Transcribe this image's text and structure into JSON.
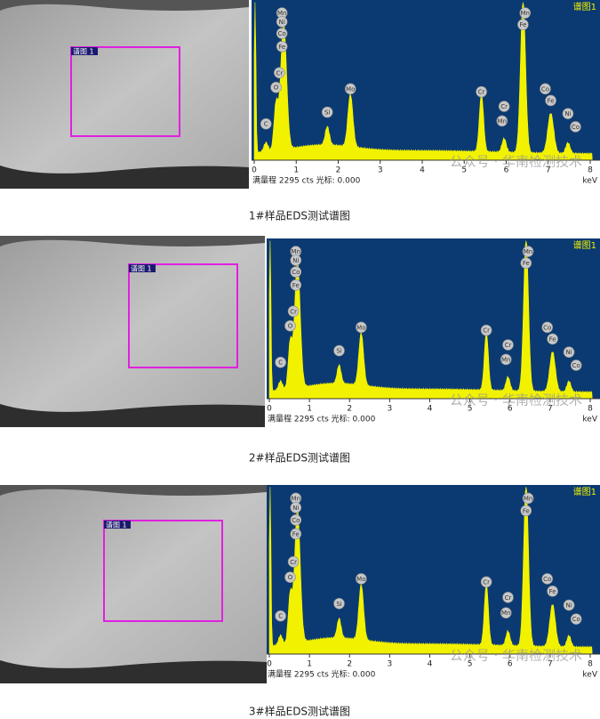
{
  "watermark": "公众号 · 华南检测技术",
  "figures": [
    {
      "region_label": "谱图 1",
      "spectrum": {
        "label": "谱图1",
        "peaks": [
          "Mn",
          "Ni",
          "Co",
          "Fe",
          "Cr",
          "O",
          "C",
          "Si",
          "Mo",
          "Cr",
          "Cr",
          "Mn",
          "Mn",
          "Fe",
          "Co",
          "Fe",
          "Ni",
          "Co"
        ],
        "ticks": [
          0,
          1,
          2,
          3,
          4,
          5,
          6,
          7,
          8
        ],
        "unit": "keV",
        "status": "满量程 2295 cts 光标: 0.000"
      },
      "caption": "1#样品EDS测试谱图"
    },
    {
      "region_label": "谱图 1",
      "spectrum": {
        "label": "谱图1",
        "peaks": [
          "Mn",
          "Ni",
          "Co",
          "Fe",
          "Cr",
          "O",
          "C",
          "Si",
          "Mo",
          "Cr",
          "Cr",
          "Mn",
          "Mn",
          "Fe",
          "Co",
          "Fe",
          "Ni",
          "Co"
        ],
        "ticks": [
          0,
          1,
          2,
          3,
          4,
          5,
          6,
          7,
          8
        ],
        "unit": "keV",
        "status": "满量程 2295 cts 光标: 0.000"
      },
      "caption": "2#样品EDS测试谱图"
    },
    {
      "region_label": "谱图 1",
      "spectrum": {
        "label": "谱图1",
        "peaks": [
          "Mn",
          "Ni",
          "Co",
          "Fe",
          "Cr",
          "O",
          "C",
          "Si",
          "Mo",
          "Cr",
          "Cr",
          "Mn",
          "Mn",
          "Fe",
          "Co",
          "Fe",
          "Ni",
          "Co"
        ],
        "ticks": [
          0,
          1,
          2,
          3,
          4,
          5,
          6,
          7,
          8
        ],
        "unit": "keV",
        "status": "满量程 2295 cts 光标: 0.000"
      },
      "caption": "3#样品EDS测试谱图"
    }
  ]
}
